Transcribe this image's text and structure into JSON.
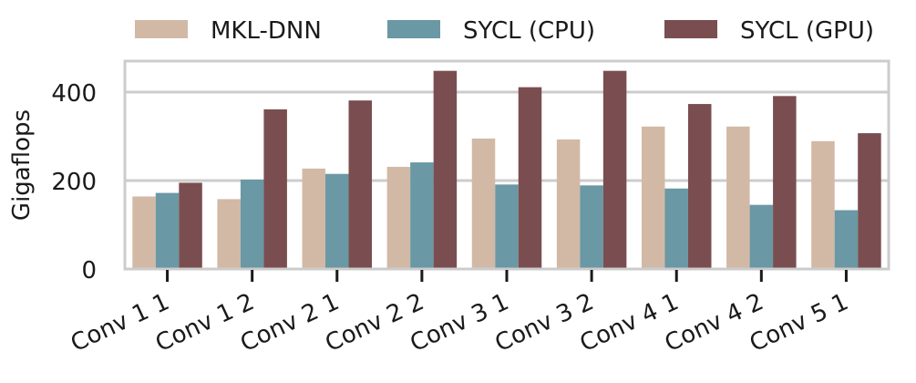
{
  "chart_data": {
    "type": "bar",
    "title": "",
    "xlabel": "",
    "ylabel": "Gigaflops",
    "ylim": [
      0,
      470
    ],
    "yticks": [
      0,
      200,
      400
    ],
    "grid": "horizontal",
    "legend_position": "top",
    "categories": [
      "Conv 1 1",
      "Conv 1 2",
      "Conv 2 1",
      "Conv 2 2",
      "Conv 3 1",
      "Conv 3 2",
      "Conv 4 1",
      "Conv 4 2",
      "Conv 5 1"
    ],
    "series": [
      {
        "name": "MKL-DNN",
        "color": "#d2b9a5",
        "values": [
          164,
          158,
          227,
          231,
          295,
          293,
          322,
          322,
          289
        ]
      },
      {
        "name": "SYCL (CPU)",
        "color": "#6a98a4",
        "values": [
          172,
          202,
          215,
          241,
          191,
          189,
          182,
          145,
          133
        ]
      },
      {
        "name": "SYCL (GPU)",
        "color": "#7a4e50",
        "values": [
          195,
          361,
          381,
          448,
          411,
          448,
          373,
          391,
          307
        ]
      }
    ]
  }
}
